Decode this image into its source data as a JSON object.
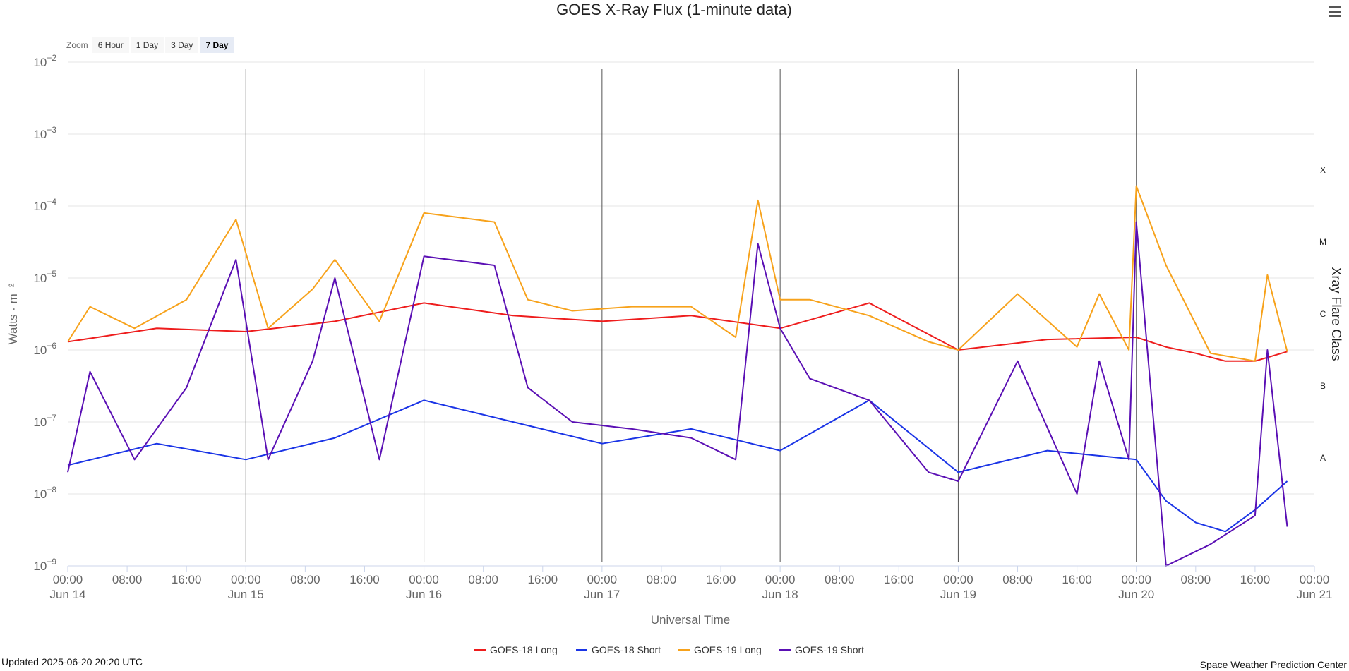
{
  "zoom": {
    "label": "Zoom",
    "buttons": [
      "6 Hour",
      "1 Day",
      "3 Day",
      "7 Day"
    ],
    "active": "7 Day"
  },
  "footer": {
    "updated": "Updated 2025-06-20 20:20 UTC",
    "credit": "Space Weather Prediction Center"
  },
  "chart_data": {
    "type": "line",
    "title": "GOES X-Ray Flux (1-minute data)",
    "xlabel": "Universal Time",
    "ylabel": "Watts · m⁻²",
    "y2label": "Xray Flare Class",
    "yscale": "log",
    "ylim": [
      1e-09,
      0.01
    ],
    "xlim": [
      "2025-06-14 00:00",
      "2025-06-21 00:00"
    ],
    "x_tick_labels": [
      "00:00",
      "08:00",
      "16:00",
      "00:00",
      "08:00",
      "16:00",
      "00:00",
      "08:00",
      "16:00",
      "00:00",
      "08:00",
      "16:00",
      "00:00",
      "08:00",
      "16:00",
      "00:00",
      "08:00",
      "16:00",
      "00:00",
      "08:00",
      "16:00",
      "00:00"
    ],
    "x_date_labels": [
      "Jun 14",
      "Jun 15",
      "Jun 16",
      "Jun 17",
      "Jun 18",
      "Jun 19",
      "Jun 20",
      "Jun 21"
    ],
    "y_tick_labels": [
      {
        "base": "10",
        "exp": "−2"
      },
      {
        "base": "10",
        "exp": "−3"
      },
      {
        "base": "10",
        "exp": "−4"
      },
      {
        "base": "10",
        "exp": "−5"
      },
      {
        "base": "10",
        "exp": "−6"
      },
      {
        "base": "10",
        "exp": "−7"
      },
      {
        "base": "10",
        "exp": "−8"
      },
      {
        "base": "10",
        "exp": "−9"
      }
    ],
    "flare_classes": [
      "X",
      "M",
      "C",
      "B",
      "A"
    ],
    "grid": true,
    "legend_position": "bottom-center",
    "day_divider_dates": [
      "Jun 15",
      "Jun 16",
      "Jun 17",
      "Jun 18",
      "Jun 19",
      "Jun 20"
    ],
    "series": [
      {
        "name": "GOES-18 Long",
        "color": "#ee1c1c",
        "x": [
          "2025-06-14 00:00",
          "2025-06-14 12:00",
          "2025-06-15 00:00",
          "2025-06-15 12:00",
          "2025-06-16 00:00",
          "2025-06-16 12:00",
          "2025-06-17 00:00",
          "2025-06-17 12:00",
          "2025-06-18 00:00",
          "2025-06-18 12:00",
          "2025-06-19 00:00",
          "2025-06-19 12:00",
          "2025-06-20 00:00",
          "2025-06-20 04:00",
          "2025-06-20 08:00",
          "2025-06-20 12:00",
          "2025-06-20 16:00",
          "2025-06-20 20:20"
        ],
        "y": [
          1.3e-06,
          2e-06,
          1.8e-06,
          2.5e-06,
          4.5e-06,
          3e-06,
          2.5e-06,
          3e-06,
          2e-06,
          4.5e-06,
          1e-06,
          1.4e-06,
          1.5e-06,
          1.1e-06,
          9e-07,
          7e-07,
          7e-07,
          9.5e-07
        ]
      },
      {
        "name": "GOES-18 Short",
        "color": "#1a34e6",
        "x": [
          "2025-06-14 00:00",
          "2025-06-14 12:00",
          "2025-06-15 00:00",
          "2025-06-15 12:00",
          "2025-06-16 00:00",
          "2025-06-16 12:00",
          "2025-06-17 00:00",
          "2025-06-17 12:00",
          "2025-06-18 00:00",
          "2025-06-18 12:00",
          "2025-06-19 00:00",
          "2025-06-19 12:00",
          "2025-06-20 00:00",
          "2025-06-20 04:00",
          "2025-06-20 08:00",
          "2025-06-20 12:00",
          "2025-06-20 16:00",
          "2025-06-20 20:20"
        ],
        "y": [
          2.5e-08,
          5e-08,
          3e-08,
          6e-08,
          2e-07,
          1e-07,
          5e-08,
          8e-08,
          4e-08,
          2e-07,
          2e-08,
          4e-08,
          3e-08,
          8e-09,
          4e-09,
          3e-09,
          6e-09,
          1.5e-08
        ]
      },
      {
        "name": "GOES-19 Long",
        "color": "#f7a21b",
        "x": [
          "2025-06-14 00:00",
          "2025-06-14 03:00",
          "2025-06-14 09:00",
          "2025-06-14 16:00",
          "2025-06-14 22:40",
          "2025-06-15 03:00",
          "2025-06-15 09:00",
          "2025-06-15 12:00",
          "2025-06-15 18:00",
          "2025-06-16 00:00",
          "2025-06-16 09:30",
          "2025-06-16 14:00",
          "2025-06-16 20:00",
          "2025-06-17 04:00",
          "2025-06-17 12:00",
          "2025-06-17 18:00",
          "2025-06-17 21:00",
          "2025-06-18 00:00",
          "2025-06-18 04:00",
          "2025-06-18 12:00",
          "2025-06-18 20:00",
          "2025-06-19 00:00",
          "2025-06-19 08:00",
          "2025-06-19 16:00",
          "2025-06-19 19:00",
          "2025-06-19 23:00",
          "2025-06-20 00:00",
          "2025-06-20 04:00",
          "2025-06-20 10:00",
          "2025-06-20 16:00",
          "2025-06-20 17:40",
          "2025-06-20 20:20"
        ],
        "y": [
          1.3e-06,
          4e-06,
          2e-06,
          5e-06,
          6.5e-05,
          2e-06,
          7e-06,
          1.8e-05,
          2.5e-06,
          8e-05,
          6e-05,
          5e-06,
          3.5e-06,
          4e-06,
          4e-06,
          1.5e-06,
          0.00012,
          5e-06,
          5e-06,
          3e-06,
          1.3e-06,
          1e-06,
          6e-06,
          1.1e-06,
          6e-06,
          1e-06,
          0.00019,
          1.5e-05,
          9e-07,
          7e-07,
          1.1e-05,
          9.5e-07
        ]
      },
      {
        "name": "GOES-19 Short",
        "color": "#5a0fb4",
        "x": [
          "2025-06-14 00:00",
          "2025-06-14 03:00",
          "2025-06-14 09:00",
          "2025-06-14 16:00",
          "2025-06-14 22:40",
          "2025-06-15 03:00",
          "2025-06-15 09:00",
          "2025-06-15 12:00",
          "2025-06-15 18:00",
          "2025-06-16 00:00",
          "2025-06-16 09:30",
          "2025-06-16 14:00",
          "2025-06-16 20:00",
          "2025-06-17 04:00",
          "2025-06-17 12:00",
          "2025-06-17 18:00",
          "2025-06-17 21:00",
          "2025-06-18 00:00",
          "2025-06-18 04:00",
          "2025-06-18 12:00",
          "2025-06-18 20:00",
          "2025-06-19 00:00",
          "2025-06-19 08:00",
          "2025-06-19 16:00",
          "2025-06-19 19:00",
          "2025-06-19 23:00",
          "2025-06-20 00:00",
          "2025-06-20 04:00",
          "2025-06-20 10:00",
          "2025-06-20 16:00",
          "2025-06-20 17:40",
          "2025-06-20 20:20"
        ],
        "y": [
          2e-08,
          5e-07,
          3e-08,
          3e-07,
          1.8e-05,
          3e-08,
          7e-07,
          1e-05,
          3e-08,
          2e-05,
          1.5e-05,
          3e-07,
          1e-07,
          8e-08,
          6e-08,
          3e-08,
          3e-05,
          2e-06,
          4e-07,
          2e-07,
          2e-08,
          1.5e-08,
          7e-07,
          1e-08,
          7e-07,
          3e-08,
          6e-05,
          1e-09,
          2e-09,
          5e-09,
          1e-06,
          3.5e-09
        ]
      }
    ]
  }
}
